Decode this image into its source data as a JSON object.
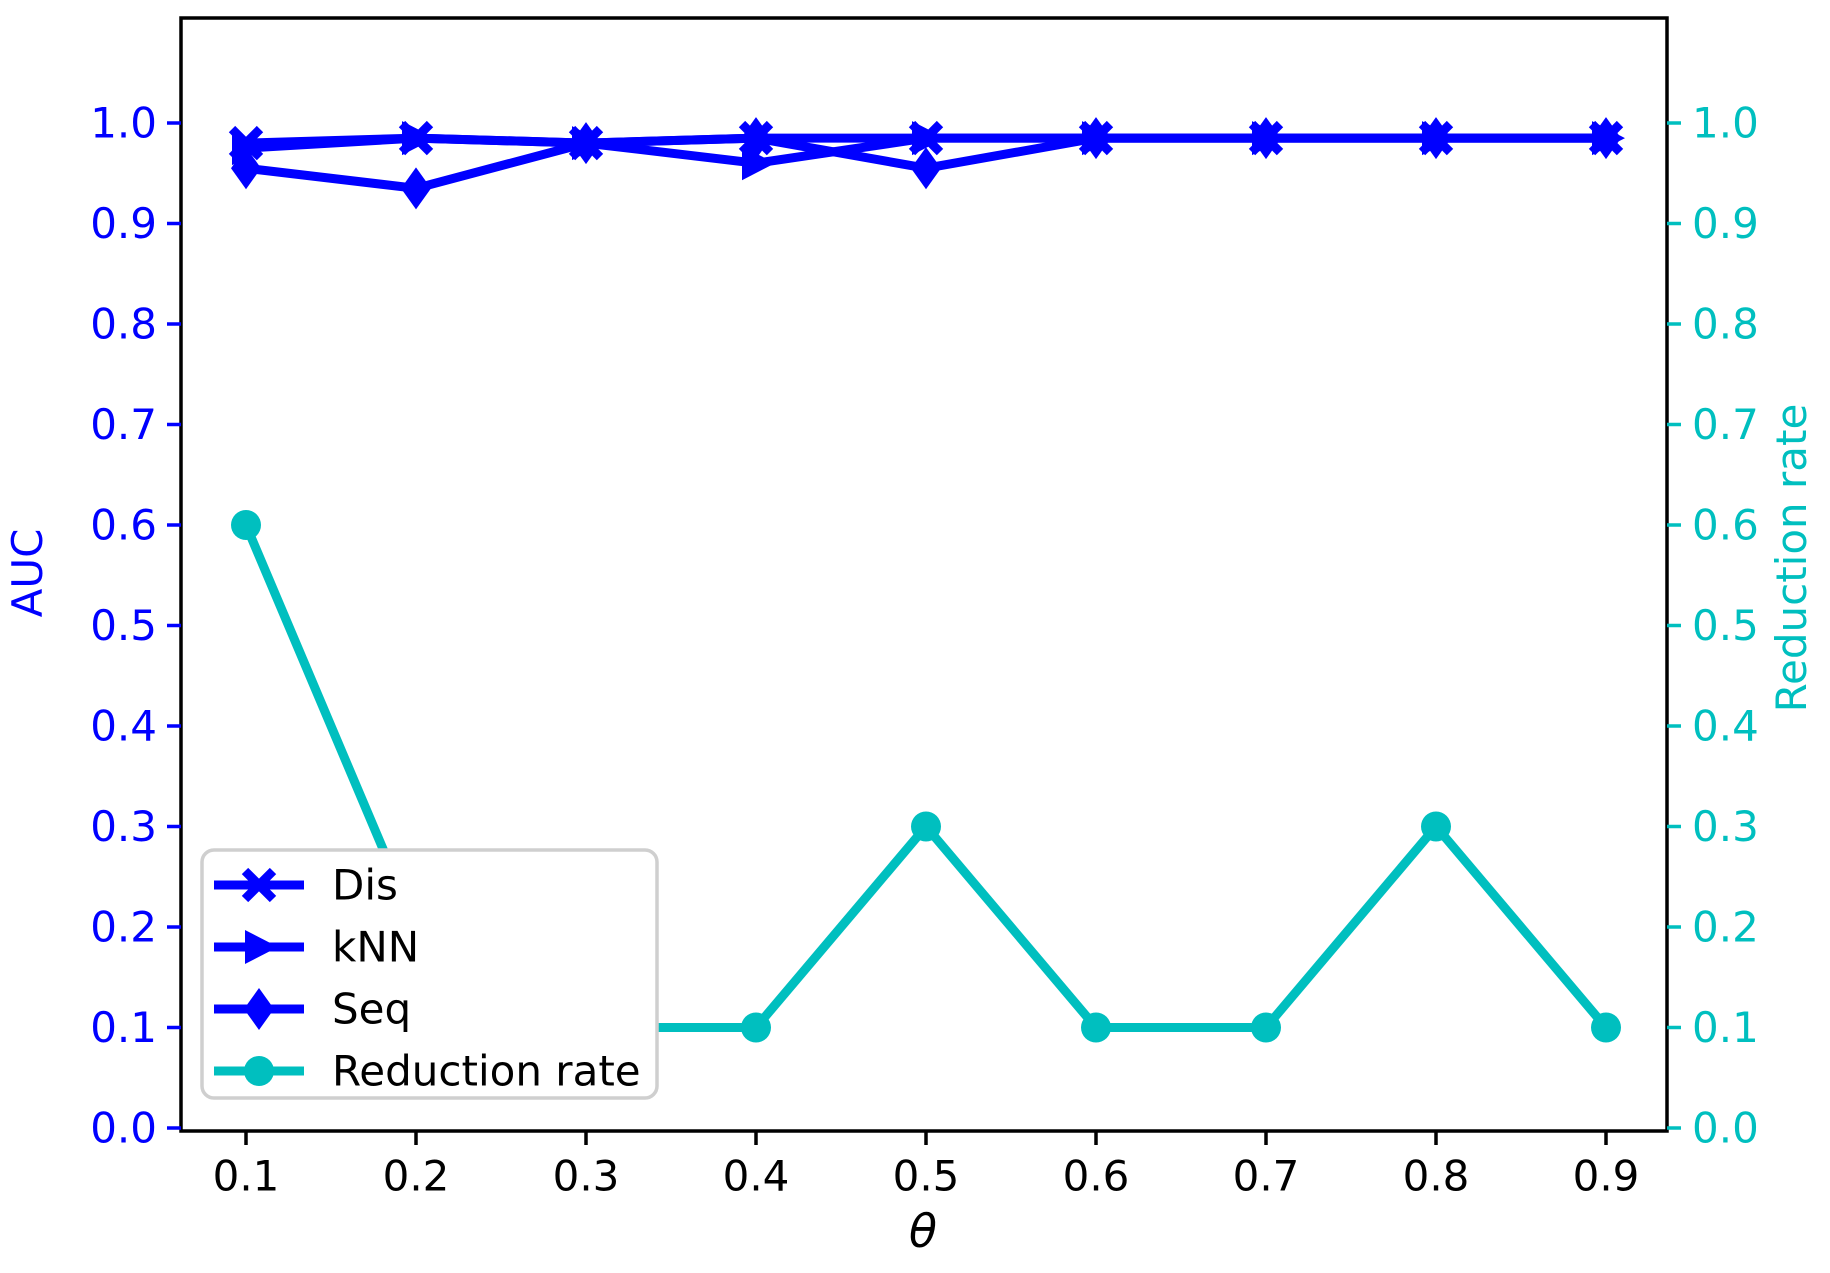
{
  "chart_data": {
    "type": "line",
    "title": "",
    "xlabel": "θ",
    "ylabel_left": "AUC",
    "ylabel_right": "Reduction rate",
    "x": [
      0.1,
      0.2,
      0.3,
      0.4,
      0.5,
      0.6,
      0.7,
      0.8,
      0.9
    ],
    "xtick_labels": [
      "0.1",
      "0.2",
      "0.3",
      "0.4",
      "0.5",
      "0.6",
      "0.7",
      "0.8",
      "0.9"
    ],
    "ytick_values": [
      0.0,
      0.1,
      0.2,
      0.3,
      0.4,
      0.5,
      0.6,
      0.7,
      0.8,
      0.9,
      1.0
    ],
    "ytick_labels": [
      "0.0",
      "0.1",
      "0.2",
      "0.3",
      "0.4",
      "0.5",
      "0.6",
      "0.7",
      "0.8",
      "0.9",
      "1.0"
    ],
    "xlim": [
      0.062,
      0.938
    ],
    "ylim": [
      0.0,
      1.1
    ],
    "grid": false,
    "axis_colors": {
      "left": "#0000ff",
      "right": "#00bfbf",
      "bottom": "#000000",
      "spine": "#000000"
    },
    "series": [
      {
        "name": "Dis",
        "axis": "left",
        "color": "#0000ff",
        "marker": "x",
        "values": [
          0.98,
          0.985,
          0.98,
          0.985,
          0.985,
          0.985,
          0.985,
          0.985,
          0.985
        ]
      },
      {
        "name": "kNN",
        "axis": "left",
        "color": "#0000ff",
        "marker": "triangle-right",
        "values": [
          0.975,
          0.985,
          0.98,
          0.96,
          0.985,
          0.985,
          0.985,
          0.985,
          0.985
        ]
      },
      {
        "name": "Seq",
        "axis": "left",
        "color": "#0000ff",
        "marker": "diamond",
        "values": [
          0.955,
          0.935,
          0.98,
          0.985,
          0.955,
          0.985,
          0.985,
          0.985,
          0.985
        ]
      },
      {
        "name": "Reduction rate",
        "axis": "right",
        "color": "#00bfbf",
        "marker": "circle",
        "values": [
          0.6,
          0.2,
          0.1,
          0.1,
          0.3,
          0.1,
          0.1,
          0.3,
          0.1
        ]
      }
    ],
    "legend": {
      "position": "lower left",
      "entries": [
        "Dis",
        "kNN",
        "Seq",
        "Reduction rate"
      ]
    }
  }
}
